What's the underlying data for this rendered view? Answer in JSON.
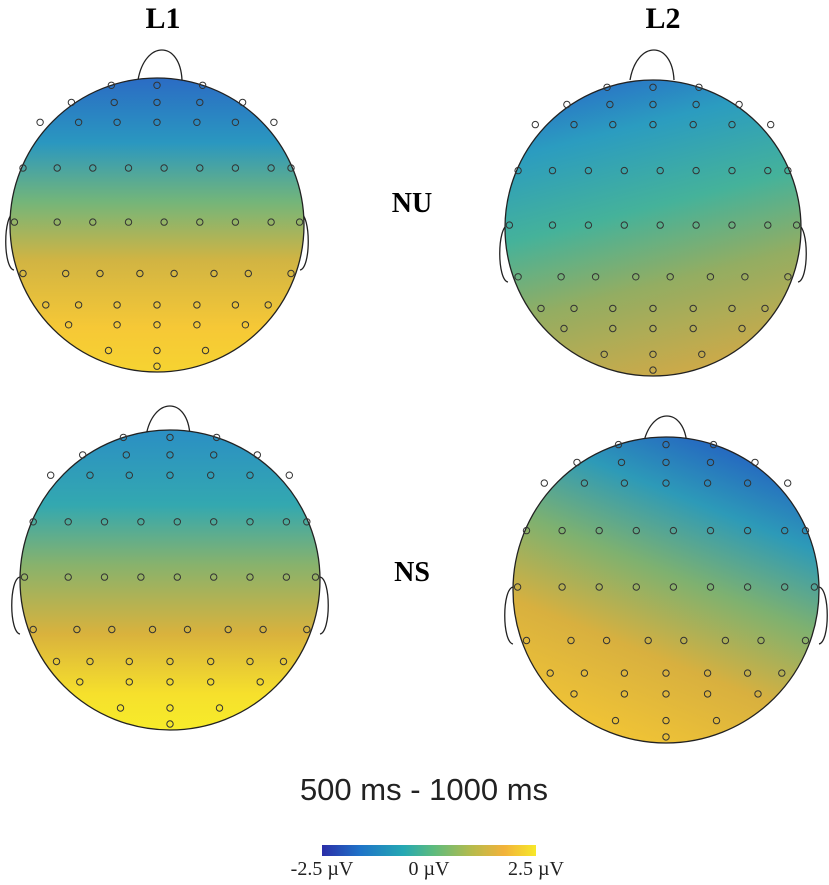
{
  "columns": [
    {
      "label": "L1"
    },
    {
      "label": "L2"
    }
  ],
  "rows": [
    {
      "label": "NU"
    },
    {
      "label": "NS"
    }
  ],
  "time_window": "500 ms - 1000 ms",
  "colorbar": {
    "min_label": "-2.5 µV",
    "mid_label": "0 µV",
    "max_label": "2.5 µV",
    "colors": [
      "#2b2ea8",
      "#1f74c8",
      "#25a8b3",
      "#5cbb7e",
      "#b6bb4c",
      "#f2b23a",
      "#f7e82a"
    ]
  },
  "maps": [
    {
      "condition": "NU",
      "group": "L1",
      "pattern": "frontal-negative, posterior-positive (strong)"
    },
    {
      "condition": "NU",
      "group": "L2",
      "pattern": "weak, near zero"
    },
    {
      "condition": "NS",
      "group": "L1",
      "pattern": "frontal-negative, posterior-positive (strong)"
    },
    {
      "condition": "NS",
      "group": "L2",
      "pattern": "right-frontal negative, posterior positive (moderate)"
    }
  ]
}
